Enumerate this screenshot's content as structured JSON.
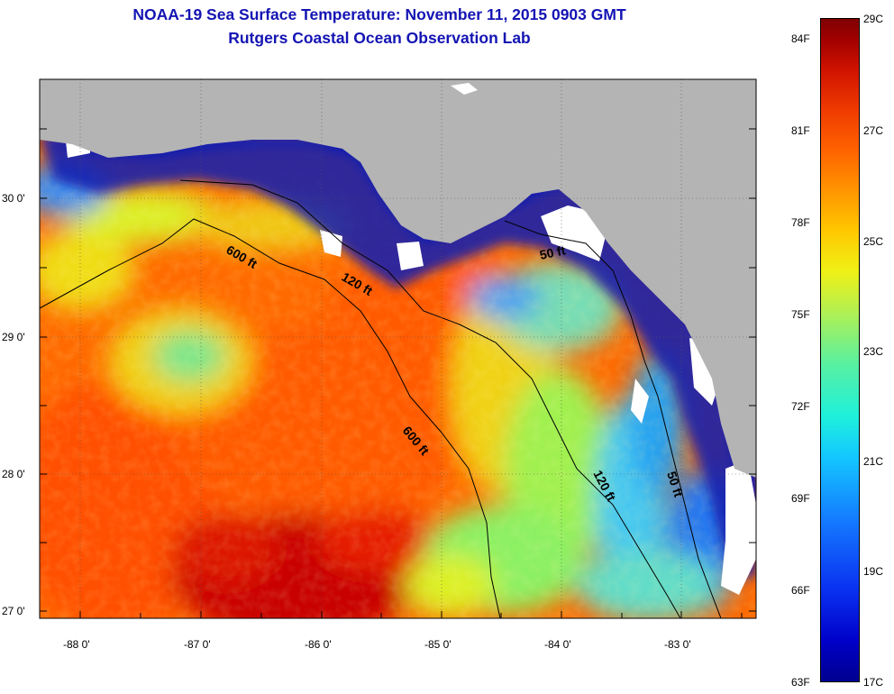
{
  "title": {
    "line1": "NOAA-19 Sea Surface Temperature:  November 11, 2015 0903 GMT",
    "line2": "Rutgers Coastal Ocean Observation Lab"
  },
  "axes": {
    "lat_labels": [
      "30 0'",
      "29 0'",
      "28 0'",
      "27 0'"
    ],
    "lon_labels": [
      "-88 0'",
      "-87 0'",
      "-86 0'",
      "-85 0'",
      "-84 0'",
      "-83 0'"
    ]
  },
  "contours": {
    "labels": [
      "600 ft",
      "120 ft",
      "50 ft",
      "600 ft",
      "120 ft",
      "50 ft"
    ]
  },
  "colorbar": {
    "fahrenheit": [
      "84F",
      "81F",
      "78F",
      "75F",
      "72F",
      "69F",
      "66F",
      "63F"
    ],
    "celsius": [
      "29C",
      "27C",
      "25C",
      "23C",
      "21C",
      "19C",
      "17C"
    ]
  },
  "colors": {
    "land": "#b4b4b4",
    "no_data": "#ffffff",
    "title_text": "#1414b4"
  }
}
